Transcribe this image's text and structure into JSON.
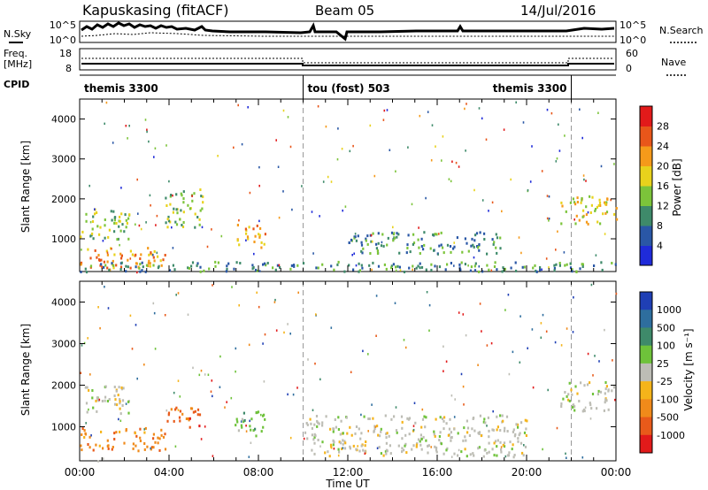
{
  "header": {
    "station": "Kapuskasing (fitACF)",
    "beam": "Beam 05",
    "date": "14/Jul/2016"
  },
  "nsky_panel": {
    "left_label": "N.Sky",
    "right_label": "N.Search",
    "left_ticks": [
      "10^5",
      "10^0"
    ],
    "right_ticks": [
      "10^5",
      "10^0"
    ]
  },
  "freq_panel": {
    "left_label_1": "Freq.",
    "left_label_2": "[MHz]",
    "right_label": "Nave",
    "left_ticks": [
      "18",
      "8"
    ],
    "right_ticks": [
      "60",
      "0"
    ]
  },
  "cpid_panel": {
    "label": "CPID",
    "segments": [
      {
        "name": "themis 3300",
        "start_hour": 0,
        "end_hour": 10
      },
      {
        "name": "tou (fost) 503",
        "start_hour": 10,
        "end_hour": 22
      },
      {
        "name": "themis 3300",
        "start_hour": 22,
        "end_hour": 24
      }
    ]
  },
  "chart_data": [
    {
      "type": "heatmap",
      "panel": "power",
      "ylabel": "Slant Range [km]",
      "xlim": [
        0,
        24
      ],
      "ylim": [
        180,
        4500
      ],
      "yticks": [
        "1000",
        "2000",
        "3000",
        "4000"
      ],
      "colorbar_label": "Power [dB]",
      "colorbar_ticks": [
        "4",
        "8",
        "12",
        "16",
        "20",
        "24",
        "28"
      ],
      "colorbar_colors": [
        "#1f2bd9",
        "#2a57a6",
        "#3e8a6a",
        "#7cc43a",
        "#e8d21c",
        "#f59a1a",
        "#e8561a",
        "#e21a1a"
      ],
      "scatter_regions": [
        {
          "t0": 0,
          "t1": 3.8,
          "r0": 250,
          "r1": 800,
          "level": 5
        },
        {
          "t0": 0,
          "t1": 2.2,
          "r0": 1000,
          "r1": 1800,
          "level": 3
        },
        {
          "t0": 3.8,
          "t1": 5.5,
          "r0": 1300,
          "r1": 2300,
          "level": 3
        },
        {
          "t0": 7,
          "t1": 8.3,
          "r0": 800,
          "r1": 1400,
          "level": 5
        },
        {
          "t0": 0,
          "t1": 24,
          "r0": 200,
          "r1": 450,
          "level": 2
        },
        {
          "t0": 12,
          "t1": 19,
          "r0": 650,
          "r1": 1200,
          "level": 2
        },
        {
          "t0": 21.5,
          "t1": 24,
          "r0": 1400,
          "r1": 2100,
          "level": 4
        }
      ]
    },
    {
      "type": "heatmap",
      "panel": "velocity",
      "ylabel": "Slant Range [km]",
      "xlabel": "Time UT",
      "xlim": [
        0,
        24
      ],
      "ylim": [
        180,
        4500
      ],
      "xticks": [
        "00:00",
        "04:00",
        "08:00",
        "12:00",
        "16:00",
        "20:00",
        "00:00"
      ],
      "yticks": [
        "1000",
        "2000",
        "3000",
        "4000"
      ],
      "colorbar_label": "Velocity [m s⁻¹]",
      "colorbar_ticks": [
        "1000",
        "500",
        "100",
        "25",
        "-25",
        "-100",
        "-500",
        "-1000"
      ],
      "colorbar_colors": [
        "#1f3fb5",
        "#2e6e9e",
        "#3e8a6a",
        "#6ec23a",
        "#bdbdb5",
        "#f5b41a",
        "#f08a1a",
        "#e85a1a",
        "#e21a1a"
      ],
      "scatter_regions": [
        {
          "t0": 0,
          "t1": 3.8,
          "r0": 450,
          "r1": 1000,
          "level": 6
        },
        {
          "t0": 0,
          "t1": 2.2,
          "r0": 1300,
          "r1": 2000,
          "level": 4
        },
        {
          "t0": 3.8,
          "t1": 5.5,
          "r0": 1000,
          "r1": 1500,
          "level": 7
        },
        {
          "t0": 6.8,
          "t1": 8.3,
          "r0": 800,
          "r1": 1400,
          "level": 3
        },
        {
          "t0": 10,
          "t1": 20,
          "r0": 300,
          "r1": 1300,
          "level": 4
        },
        {
          "t0": 21.5,
          "t1": 24,
          "r0": 1400,
          "r1": 2100,
          "level": 4
        }
      ]
    }
  ]
}
